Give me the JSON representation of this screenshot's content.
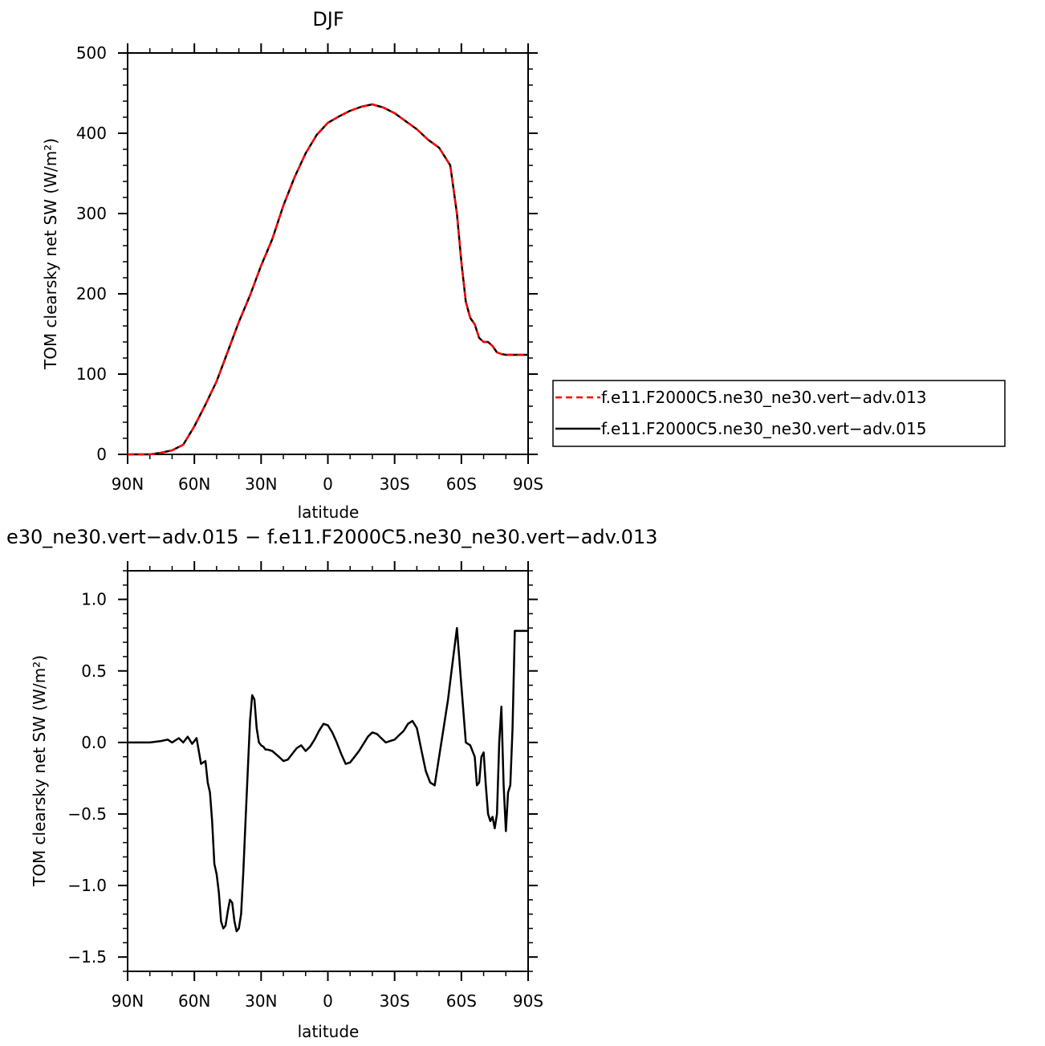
{
  "chart_data": [
    {
      "type": "line",
      "title": "DJF",
      "xlabel": "latitude",
      "ylabel": "TOM clearsky net SW (W/m²)",
      "xlim": [
        -90,
        90
      ],
      "ylim": [
        0,
        500
      ],
      "x_ticks": [
        {
          "value": -90,
          "label": "90N"
        },
        {
          "value": -60,
          "label": "60N"
        },
        {
          "value": -30,
          "label": "30N"
        },
        {
          "value": 0,
          "label": "0"
        },
        {
          "value": 30,
          "label": "30S"
        },
        {
          "value": 60,
          "label": "60S"
        },
        {
          "value": 90,
          "label": "90S"
        }
      ],
      "y_ticks": [
        {
          "value": 0,
          "label": "0"
        },
        {
          "value": 100,
          "label": "100"
        },
        {
          "value": 200,
          "label": "200"
        },
        {
          "value": 300,
          "label": "300"
        },
        {
          "value": 400,
          "label": "400"
        },
        {
          "value": 500,
          "label": "500"
        }
      ],
      "legend_position": "right",
      "series": [
        {
          "name": "f.e11.F2000C5.ne30_ne30.vert−adv.013",
          "color": "#ff0000",
          "dash": "dashed",
          "x": [
            -90,
            -80,
            -75,
            -70,
            -65,
            -60,
            -55,
            -50,
            -45,
            -40,
            -35,
            -30,
            -25,
            -20,
            -15,
            -10,
            -5,
            0,
            5,
            10,
            15,
            20,
            25,
            30,
            35,
            40,
            45,
            50,
            55,
            58,
            60,
            62,
            64,
            66,
            68,
            70,
            72,
            74,
            76,
            78,
            80,
            82,
            84,
            86,
            88,
            90
          ],
          "y": [
            0,
            0,
            2,
            5,
            12,
            35,
            62,
            91,
            128,
            165,
            198,
            235,
            268,
            310,
            345,
            375,
            398,
            413,
            421,
            428,
            433,
            436,
            432,
            425,
            415,
            405,
            392,
            382,
            360,
            300,
            240,
            190,
            170,
            162,
            145,
            140,
            140,
            135,
            127,
            125,
            124,
            124,
            124,
            124,
            124,
            124
          ]
        },
        {
          "name": "f.e11.F2000C5.ne30_ne30.vert−adv.015",
          "color": "#000000",
          "dash": "solid",
          "x": [
            -90,
            -80,
            -75,
            -70,
            -65,
            -60,
            -55,
            -50,
            -45,
            -40,
            -35,
            -30,
            -25,
            -20,
            -15,
            -10,
            -5,
            0,
            5,
            10,
            15,
            20,
            25,
            30,
            35,
            40,
            45,
            50,
            55,
            58,
            60,
            62,
            64,
            66,
            68,
            70,
            72,
            74,
            76,
            78,
            80,
            82,
            84,
            86,
            88,
            90
          ],
          "y": [
            0,
            0,
            2,
            5,
            12,
            35,
            62,
            91,
            128,
            165,
            198,
            235,
            268,
            310,
            345,
            375,
            398,
            413,
            421,
            428,
            433,
            436,
            432,
            425,
            415,
            405,
            392,
            382,
            360,
            300,
            240,
            190,
            170,
            162,
            145,
            140,
            140,
            135,
            127,
            125,
            124,
            124,
            124,
            124,
            124,
            124
          ]
        }
      ]
    },
    {
      "type": "line",
      "title": "e30_ne30.vert−adv.015 − f.e11.F2000C5.ne30_ne30.vert−adv.013",
      "xlabel": "latitude",
      "ylabel": "TOM clearsky net SW (W/m²)",
      "xlim": [
        -90,
        90
      ],
      "ylim": [
        -1.6,
        1.2
      ],
      "x_ticks": [
        {
          "value": -90,
          "label": "90N"
        },
        {
          "value": -60,
          "label": "60N"
        },
        {
          "value": -30,
          "label": "30N"
        },
        {
          "value": 0,
          "label": "0"
        },
        {
          "value": 30,
          "label": "30S"
        },
        {
          "value": 60,
          "label": "60S"
        },
        {
          "value": 90,
          "label": "90S"
        }
      ],
      "y_ticks": [
        {
          "value": 1.0,
          "label": "1.0"
        },
        {
          "value": 0.5,
          "label": "0.5"
        },
        {
          "value": 0.0,
          "label": "0.0"
        },
        {
          "value": -0.5,
          "label": "−0.5"
        },
        {
          "value": -1.0,
          "label": "−1.0"
        },
        {
          "value": -1.5,
          "label": "−1.5"
        }
      ],
      "series": [
        {
          "color": "#000000",
          "x": [
            -90,
            -80,
            -75,
            -72,
            -70,
            -67,
            -65,
            -63,
            -61,
            -59,
            -57,
            -55,
            -54,
            -53,
            -52,
            -51,
            -50,
            -49,
            -48,
            -47,
            -46,
            -45,
            -44,
            -43,
            -42,
            -41,
            -40,
            -39,
            -38,
            -37,
            -36,
            -35,
            -34,
            -33,
            -32,
            -31,
            -30,
            -29,
            -28,
            -27,
            -25,
            -22,
            -20,
            -18,
            -16,
            -14,
            -12,
            -10,
            -8,
            -6,
            -4,
            -2,
            0,
            2,
            4,
            6,
            8,
            10,
            12,
            14,
            16,
            18,
            20,
            22,
            24,
            26,
            28,
            30,
            32,
            34,
            36,
            38,
            40,
            42,
            44,
            46,
            48,
            50,
            52,
            54,
            56,
            58,
            60,
            62,
            64,
            66,
            67,
            68,
            69,
            70,
            71,
            72,
            73,
            74,
            75,
            76,
            77,
            78,
            79,
            80,
            81,
            82,
            83,
            84,
            85,
            86,
            87,
            88,
            89,
            90
          ],
          "y": [
            0,
            0,
            0.01,
            0.02,
            0.0,
            0.03,
            0.0,
            0.04,
            -0.01,
            0.03,
            -0.15,
            -0.13,
            -0.28,
            -0.35,
            -0.55,
            -0.85,
            -0.92,
            -1.05,
            -1.25,
            -1.3,
            -1.28,
            -1.18,
            -1.1,
            -1.12,
            -1.25,
            -1.32,
            -1.3,
            -1.2,
            -0.9,
            -0.55,
            -0.2,
            0.15,
            0.33,
            0.3,
            0.1,
            0.0,
            -0.02,
            -0.03,
            -0.05,
            -0.05,
            -0.06,
            -0.1,
            -0.13,
            -0.12,
            -0.08,
            -0.04,
            -0.02,
            -0.06,
            -0.03,
            0.02,
            0.08,
            0.13,
            0.12,
            0.07,
            0.0,
            -0.08,
            -0.15,
            -0.14,
            -0.1,
            -0.06,
            -0.01,
            0.04,
            0.07,
            0.06,
            0.03,
            0.0,
            0.01,
            0.02,
            0.05,
            0.08,
            0.13,
            0.15,
            0.1,
            -0.05,
            -0.2,
            -0.28,
            -0.3,
            -0.1,
            0.1,
            0.3,
            0.55,
            0.8,
            0.4,
            0.0,
            -0.02,
            -0.1,
            -0.3,
            -0.28,
            -0.1,
            -0.07,
            -0.3,
            -0.5,
            -0.55,
            -0.52,
            -0.6,
            -0.5,
            0.0,
            0.25,
            -0.3,
            -0.62,
            -0.35,
            -0.3,
            0.1,
            0.78,
            0.78,
            0.78,
            0.78,
            0.78,
            0.78,
            0.78
          ]
        }
      ]
    }
  ]
}
